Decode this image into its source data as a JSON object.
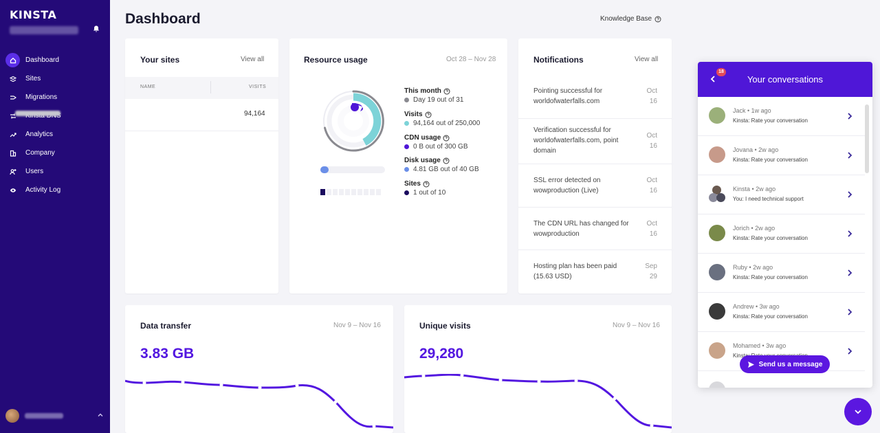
{
  "sidebar": {
    "logo": "KINSTA",
    "items": [
      {
        "label": "Dashboard",
        "icon": "home-icon",
        "active": true
      },
      {
        "label": "Sites",
        "icon": "layers-icon"
      },
      {
        "label": "Migrations",
        "icon": "migrate-icon"
      },
      {
        "label": "Kinsta DNS",
        "icon": "dns-icon"
      },
      {
        "label": "Analytics",
        "icon": "chart-trend-icon"
      },
      {
        "label": "Company",
        "icon": "building-icon"
      },
      {
        "label": "Users",
        "icon": "user-plus-icon"
      },
      {
        "label": "Activity Log",
        "icon": "eye-icon"
      }
    ]
  },
  "header": {
    "title": "Dashboard",
    "knowledge_base": "Knowledge Base"
  },
  "your_sites": {
    "title": "Your sites",
    "view_all": "View all",
    "columns": [
      "NAME",
      "VISITS"
    ],
    "rows": [
      {
        "visits": "94,164"
      }
    ]
  },
  "resource_usage": {
    "title": "Resource usage",
    "range": "Oct 28 – Nov 28",
    "legend": [
      {
        "title": "This month",
        "value": "Day 19 out of 31",
        "color": "#8a8a90"
      },
      {
        "title": "Visits",
        "value": "94,164 out of 250,000",
        "color": "#7dd3d8"
      },
      {
        "title": "CDN usage",
        "value": "0 B out of 300 GB",
        "color": "#4f17d7"
      },
      {
        "title": "Disk usage",
        "value": "4.81 GB out of 40 GB",
        "color": "#6b8fe8"
      },
      {
        "title": "Sites",
        "value": "1 out of 10",
        "color": "#1a0a5e"
      }
    ]
  },
  "notifications": {
    "title": "Notifications",
    "view_all": "View all",
    "items": [
      {
        "line1": "Pointing successful for",
        "line2": "worldofwaterfalls.com",
        "line3": "",
        "month": "Oct",
        "day": "16"
      },
      {
        "line1": "Verification successful for",
        "line2": "worldofwaterfalls.com, point",
        "line3": "domain",
        "month": "Oct",
        "day": "16"
      },
      {
        "line1": "SSL error detected on",
        "line2": "wowproduction (Live)",
        "line3": "",
        "month": "Oct",
        "day": "16"
      },
      {
        "line1": "The CDN URL has changed for",
        "line2": "wowproduction",
        "line3": "",
        "month": "Oct",
        "day": "16"
      },
      {
        "line1": "Hosting plan has been paid",
        "line2": "(15.63 USD)",
        "line3": "",
        "month": "Sep",
        "day": "29"
      }
    ]
  },
  "data_transfer": {
    "title": "Data transfer",
    "range": "Nov 9 – Nov 16",
    "value": "3.83 GB"
  },
  "unique_visits": {
    "title": "Unique visits",
    "range": "Nov 9 – Nov 16",
    "value": "29,280"
  },
  "conversations": {
    "title": "Your conversations",
    "badge": "18",
    "send_label": "Send us a message",
    "items": [
      {
        "name": "Jack • 1w ago",
        "msg": "Kinsta: Rate your conversation",
        "avatar": "#9bb07a"
      },
      {
        "name": "Jovana • 2w ago",
        "msg": "Kinsta: Rate your conversation",
        "avatar": "#c79a8a"
      },
      {
        "name": "Kinsta • 2w ago",
        "msg": "You: I need technical support",
        "avatar": "#6a5a50"
      },
      {
        "name": "Jorich • 2w ago",
        "msg": "Kinsta: Rate your conversation",
        "avatar": "#7a8a4a"
      },
      {
        "name": "Ruby • 2w ago",
        "msg": "Kinsta: Rate your conversation",
        "avatar": "#6a7080"
      },
      {
        "name": "Andrew • 3w ago",
        "msg": "Kinsta: Rate your conversation",
        "avatar": "#3a3a3a"
      },
      {
        "name": "Mohamed • 3w ago",
        "msg": "Kinsta: Rate your conversation",
        "avatar": "#c9a48a"
      }
    ]
  }
}
